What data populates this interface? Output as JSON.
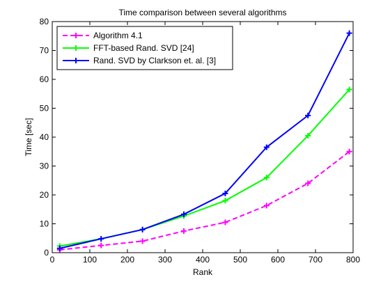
{
  "chart_data": {
    "type": "line",
    "title": "Time comparison between several algorithms",
    "xlabel": "Rank",
    "ylabel": "Time [sec]",
    "xlim": [
      0,
      800
    ],
    "ylim": [
      0,
      80
    ],
    "xticks": [
      0,
      100,
      200,
      300,
      400,
      500,
      600,
      700,
      800
    ],
    "yticks": [
      0,
      10,
      20,
      30,
      40,
      50,
      60,
      70,
      80
    ],
    "grid": false,
    "legend_position": "top-left",
    "series": [
      {
        "name": "Algorithm 4.1",
        "color": "#ff00ff",
        "line_style": "dashed",
        "marker": "plus",
        "x": [
          20,
          130,
          240,
          350,
          460,
          570,
          680,
          790
        ],
        "y": [
          1.0,
          2.5,
          4.0,
          7.5,
          10.5,
          16.3,
          24.0,
          35.0
        ]
      },
      {
        "name": "FFT-based Rand. SVD [24]",
        "color": "#00ff00",
        "line_style": "solid",
        "marker": "plus",
        "x": [
          20,
          130,
          240,
          350,
          460,
          570,
          680,
          790
        ],
        "y": [
          2.3,
          4.8,
          8.0,
          12.7,
          18.0,
          26.0,
          40.5,
          56.5
        ]
      },
      {
        "name": "Rand. SVD by Clarkson et. al. [3]",
        "color": "#0000ff",
        "line_style": "solid",
        "marker": "plus",
        "x": [
          20,
          130,
          240,
          350,
          460,
          570,
          680,
          790
        ],
        "y": [
          1.5,
          4.8,
          8.0,
          13.3,
          20.5,
          36.5,
          47.5,
          76.0
        ]
      }
    ]
  }
}
